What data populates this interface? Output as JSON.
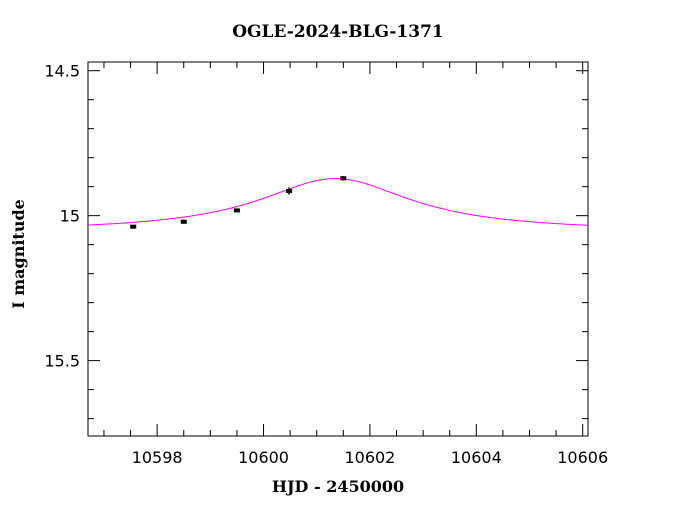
{
  "chart_data": {
    "type": "scatter",
    "title": "OGLE-2024-BLG-1371",
    "xlabel": "HJD - 2450000",
    "ylabel": "I magnitude",
    "xlim": [
      10596.7,
      10606.1
    ],
    "ylim": [
      15.76,
      14.47
    ],
    "y_inverted": true,
    "x_ticks": [
      10598,
      10600,
      10602,
      10604,
      10606
    ],
    "y_ticks": [
      14.5,
      15,
      15.5
    ],
    "x_tick_labels": [
      "10598",
      "10600",
      "10602",
      "10604",
      "10606"
    ],
    "y_tick_labels": [
      "14.5",
      "15",
      "15.5"
    ],
    "series": [
      {
        "kind": "points",
        "color": "#000000",
        "points": [
          {
            "x": 10597.55,
            "y": 15.038,
            "err": 0.007
          },
          {
            "x": 10598.5,
            "y": 15.021,
            "err": 0.007
          },
          {
            "x": 10599.5,
            "y": 14.982,
            "err": 0.006
          },
          {
            "x": 10600.48,
            "y": 14.915,
            "err": 0.012
          },
          {
            "x": 10601.5,
            "y": 14.871,
            "err": 0.008
          }
        ]
      },
      {
        "kind": "model",
        "color": "#ff00ff",
        "model": {
          "t0": 10601.35,
          "tE": 1.75,
          "base": 15.055,
          "peak": 14.872
        }
      }
    ],
    "grid": false
  }
}
